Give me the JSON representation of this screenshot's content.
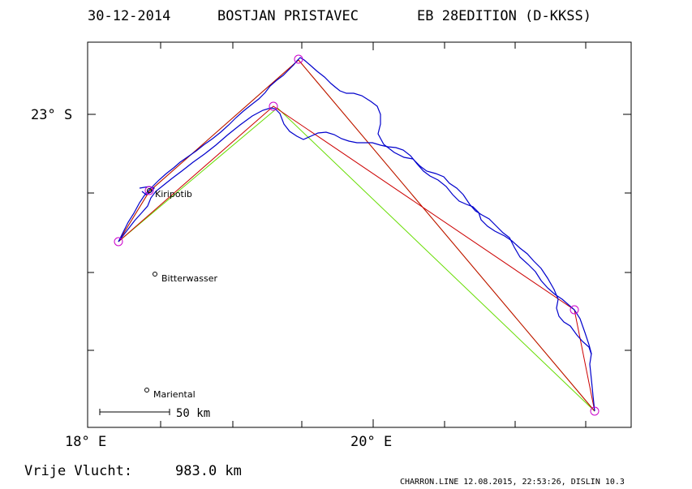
{
  "header": {
    "date": "30-12-2014",
    "pilot": "BOSTJAN PRISTAVEC",
    "glider": "EB 28EDITION (D-KKSS)"
  },
  "axes": {
    "lat_label": "23° S",
    "lon_labels": [
      "18° E",
      "20° E"
    ]
  },
  "places": [
    "Kiripotib",
    "Bitterwasser",
    "Mariental"
  ],
  "scale_bar": {
    "label": "50 km"
  },
  "footer": {
    "distance_label": "Vrije Vlucht:",
    "distance_value": "983.0 km",
    "credit": "CHARRON.LINE 12.08.2015, 22:53:26, DISLIN 10.3"
  },
  "colors": {
    "track": "#0000cc",
    "task_primary": "#cc0000",
    "task_secondary": "#66dd00",
    "turnpoint": "#cc00cc",
    "frame": "#000000"
  }
}
